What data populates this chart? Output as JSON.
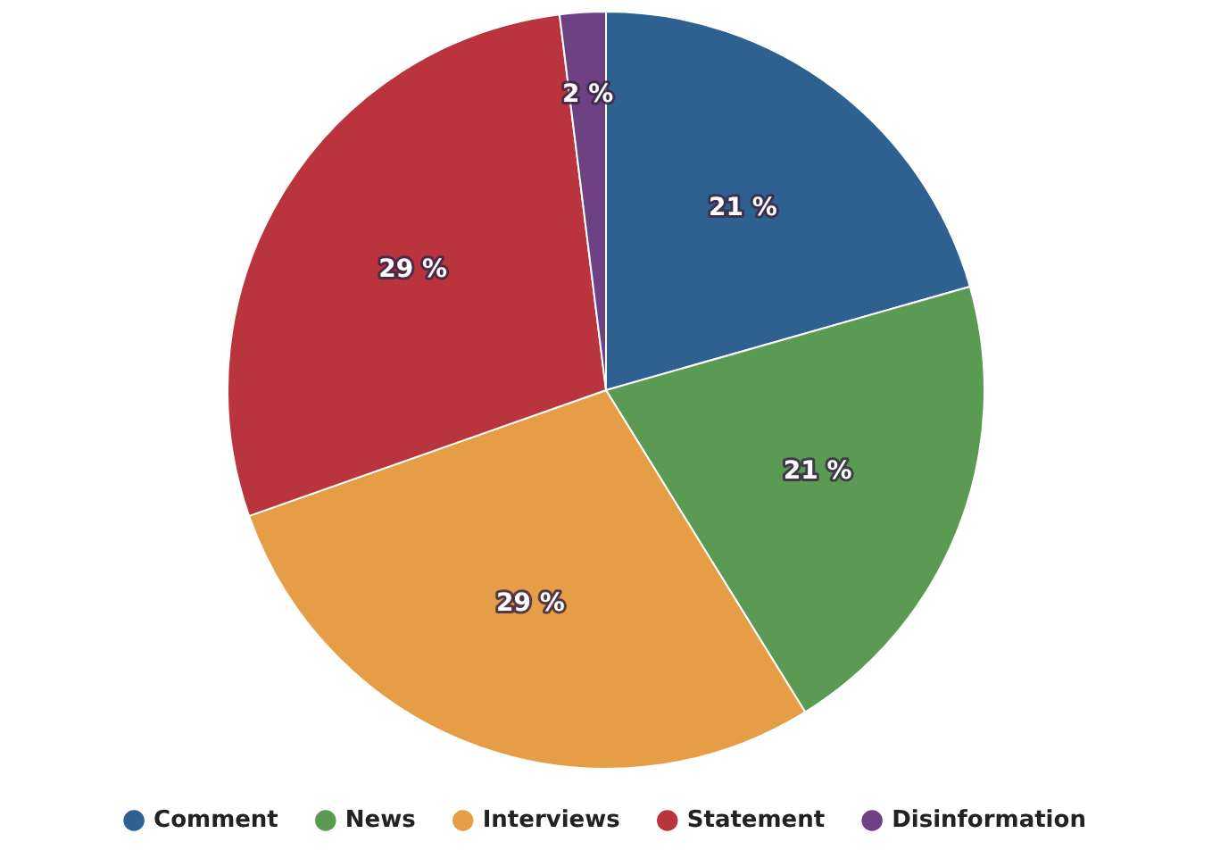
{
  "chart_data": {
    "type": "pie",
    "categories": [
      "Comment",
      "News",
      "Interviews",
      "Statement",
      "Disinformation"
    ],
    "values": [
      21,
      21,
      29,
      29,
      2
    ],
    "value_labels": [
      "21 %",
      "21 %",
      "29 %",
      "29 %",
      "2 %"
    ],
    "colors": [
      "#2e6090",
      "#5b9a52",
      "#e59e46",
      "#b9343c",
      "#6e4282"
    ],
    "legend": "bottom"
  }
}
